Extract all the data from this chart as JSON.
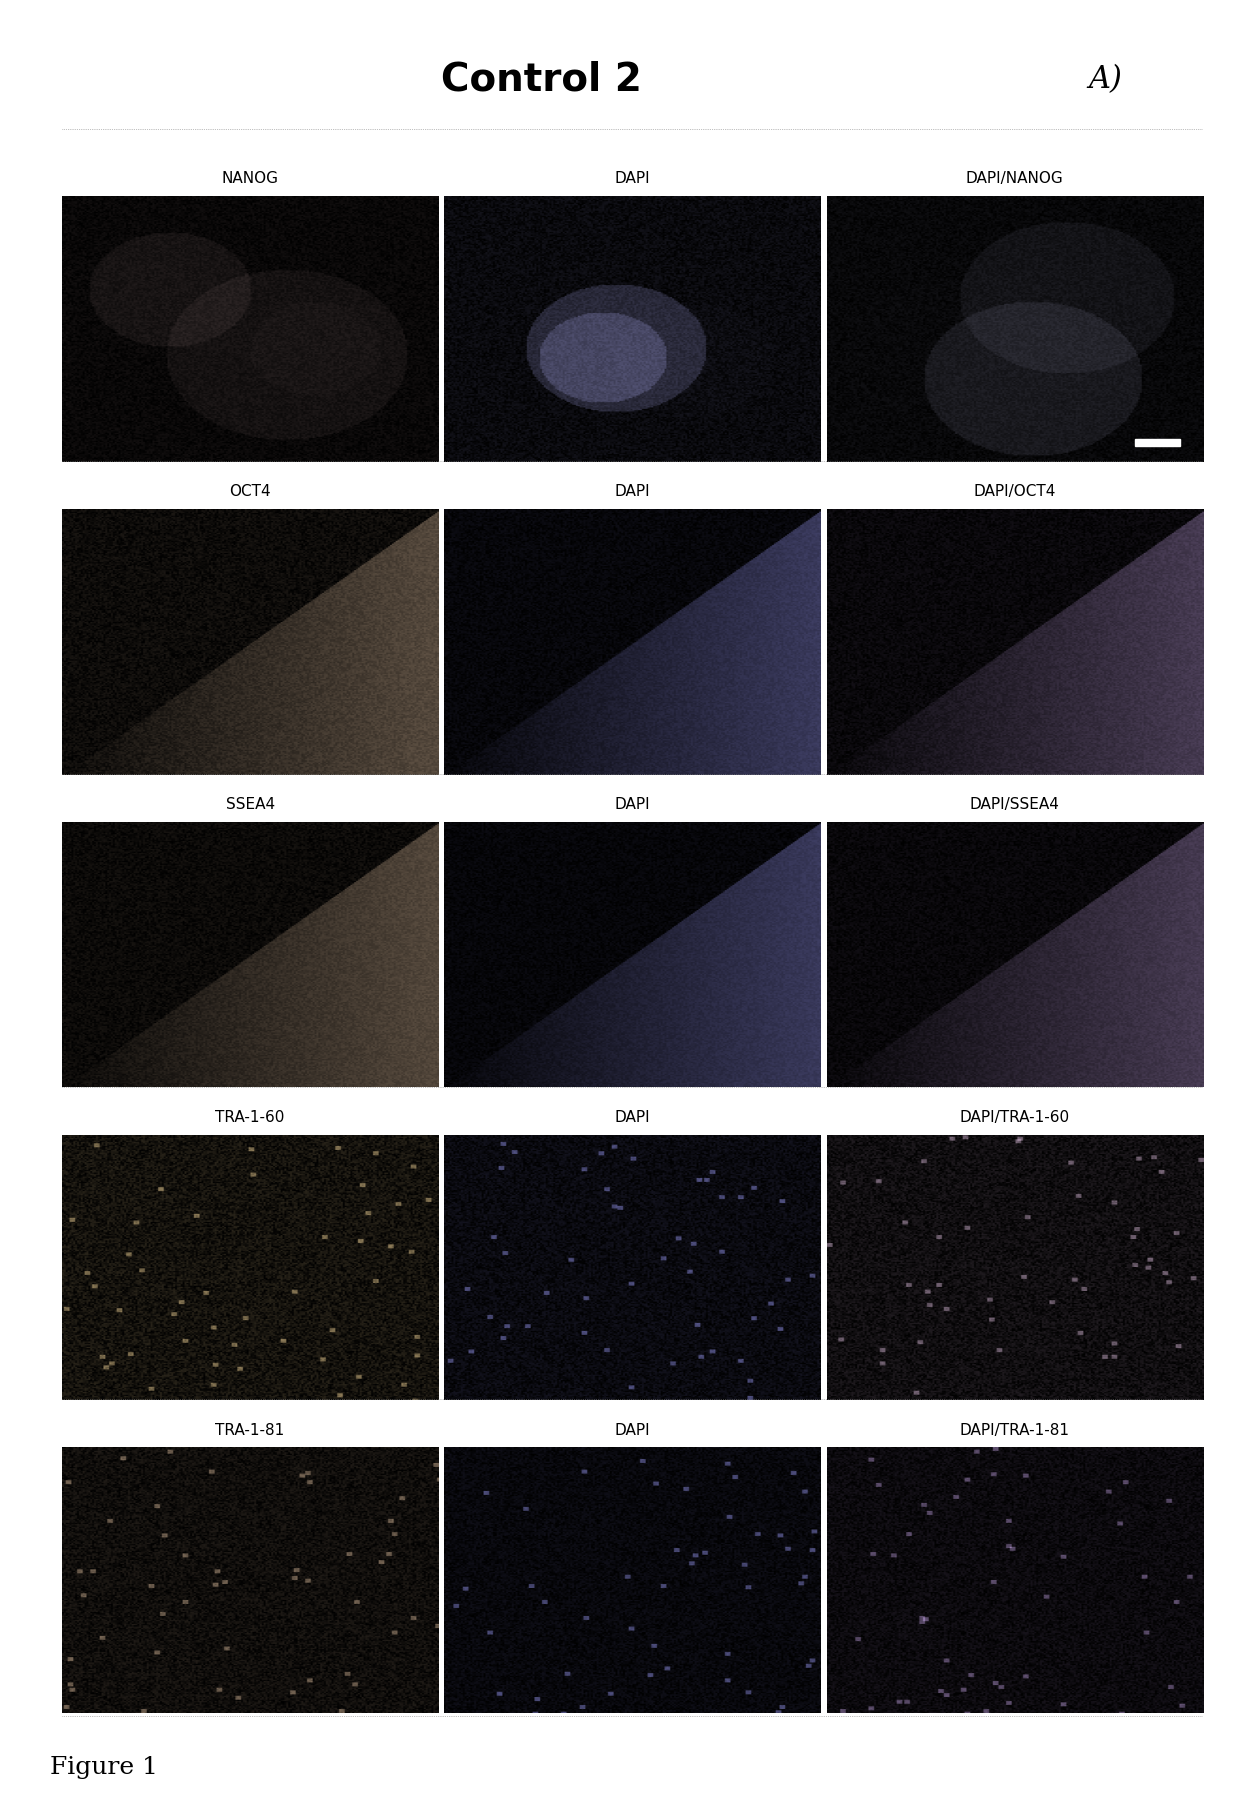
{
  "title": "Control 2",
  "panel_label": "A)",
  "figure_label": "Figure 1",
  "rows": [
    {
      "col1": "NANOG",
      "col2": "DAPI",
      "col3": "DAPI/NANOG"
    },
    {
      "col1": "OCT4",
      "col2": "DAPI",
      "col3": "DAPI/OCT4"
    },
    {
      "col1": "SSEA4",
      "col2": "DAPI",
      "col3": "DAPI/SSEA4"
    },
    {
      "col1": "TRA-1-60",
      "col2": "DAPI",
      "col3": "DAPI/TRA-1-60"
    },
    {
      "col1": "TRA-1-81",
      "col2": "DAPI",
      "col3": "DAPI/TRA-1-81"
    }
  ],
  "bg_color": "#ffffff",
  "header_bar_color": "#1a1a1a",
  "image_bg_color": "#2a2a2a",
  "label_color_on_dark": "#dddddd",
  "label_color_on_white": "#000000",
  "title_fontsize": 28,
  "panel_label_fontsize": 22,
  "row_label_fontsize": 11,
  "fig_label_fontsize": 18,
  "title_fontweight": "bold",
  "panel_label_fontweight": "normal"
}
